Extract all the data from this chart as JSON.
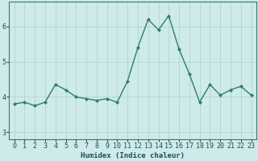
{
  "x": [
    0,
    1,
    2,
    3,
    4,
    5,
    6,
    7,
    8,
    9,
    10,
    11,
    12,
    13,
    14,
    15,
    16,
    17,
    18,
    19,
    20,
    21,
    22,
    23
  ],
  "y": [
    3.8,
    3.85,
    3.75,
    3.85,
    4.35,
    4.2,
    4.0,
    3.95,
    3.9,
    3.95,
    3.85,
    4.45,
    5.4,
    6.2,
    5.9,
    6.3,
    5.35,
    4.65,
    3.85,
    4.35,
    4.05,
    4.2,
    4.3,
    4.05
  ],
  "line_color": "#2e7d6e",
  "marker": "D",
  "marker_size": 2.0,
  "linewidth": 1.0,
  "bg_color": "#ceeaea",
  "grid_color": "#aed0d0",
  "xlabel": "Humidex (Indice chaleur)",
  "ylabel": "",
  "ylim": [
    2.8,
    6.7
  ],
  "xlim": [
    -0.5,
    23.5
  ],
  "yticks": [
    3,
    4,
    5,
    6
  ],
  "xticks": [
    0,
    1,
    2,
    3,
    4,
    5,
    6,
    7,
    8,
    9,
    10,
    11,
    12,
    13,
    14,
    15,
    16,
    17,
    18,
    19,
    20,
    21,
    22,
    23
  ],
  "xlabel_fontsize": 6.5,
  "tick_fontsize": 6.0,
  "title": "",
  "spine_color": "#2e7d6e"
}
